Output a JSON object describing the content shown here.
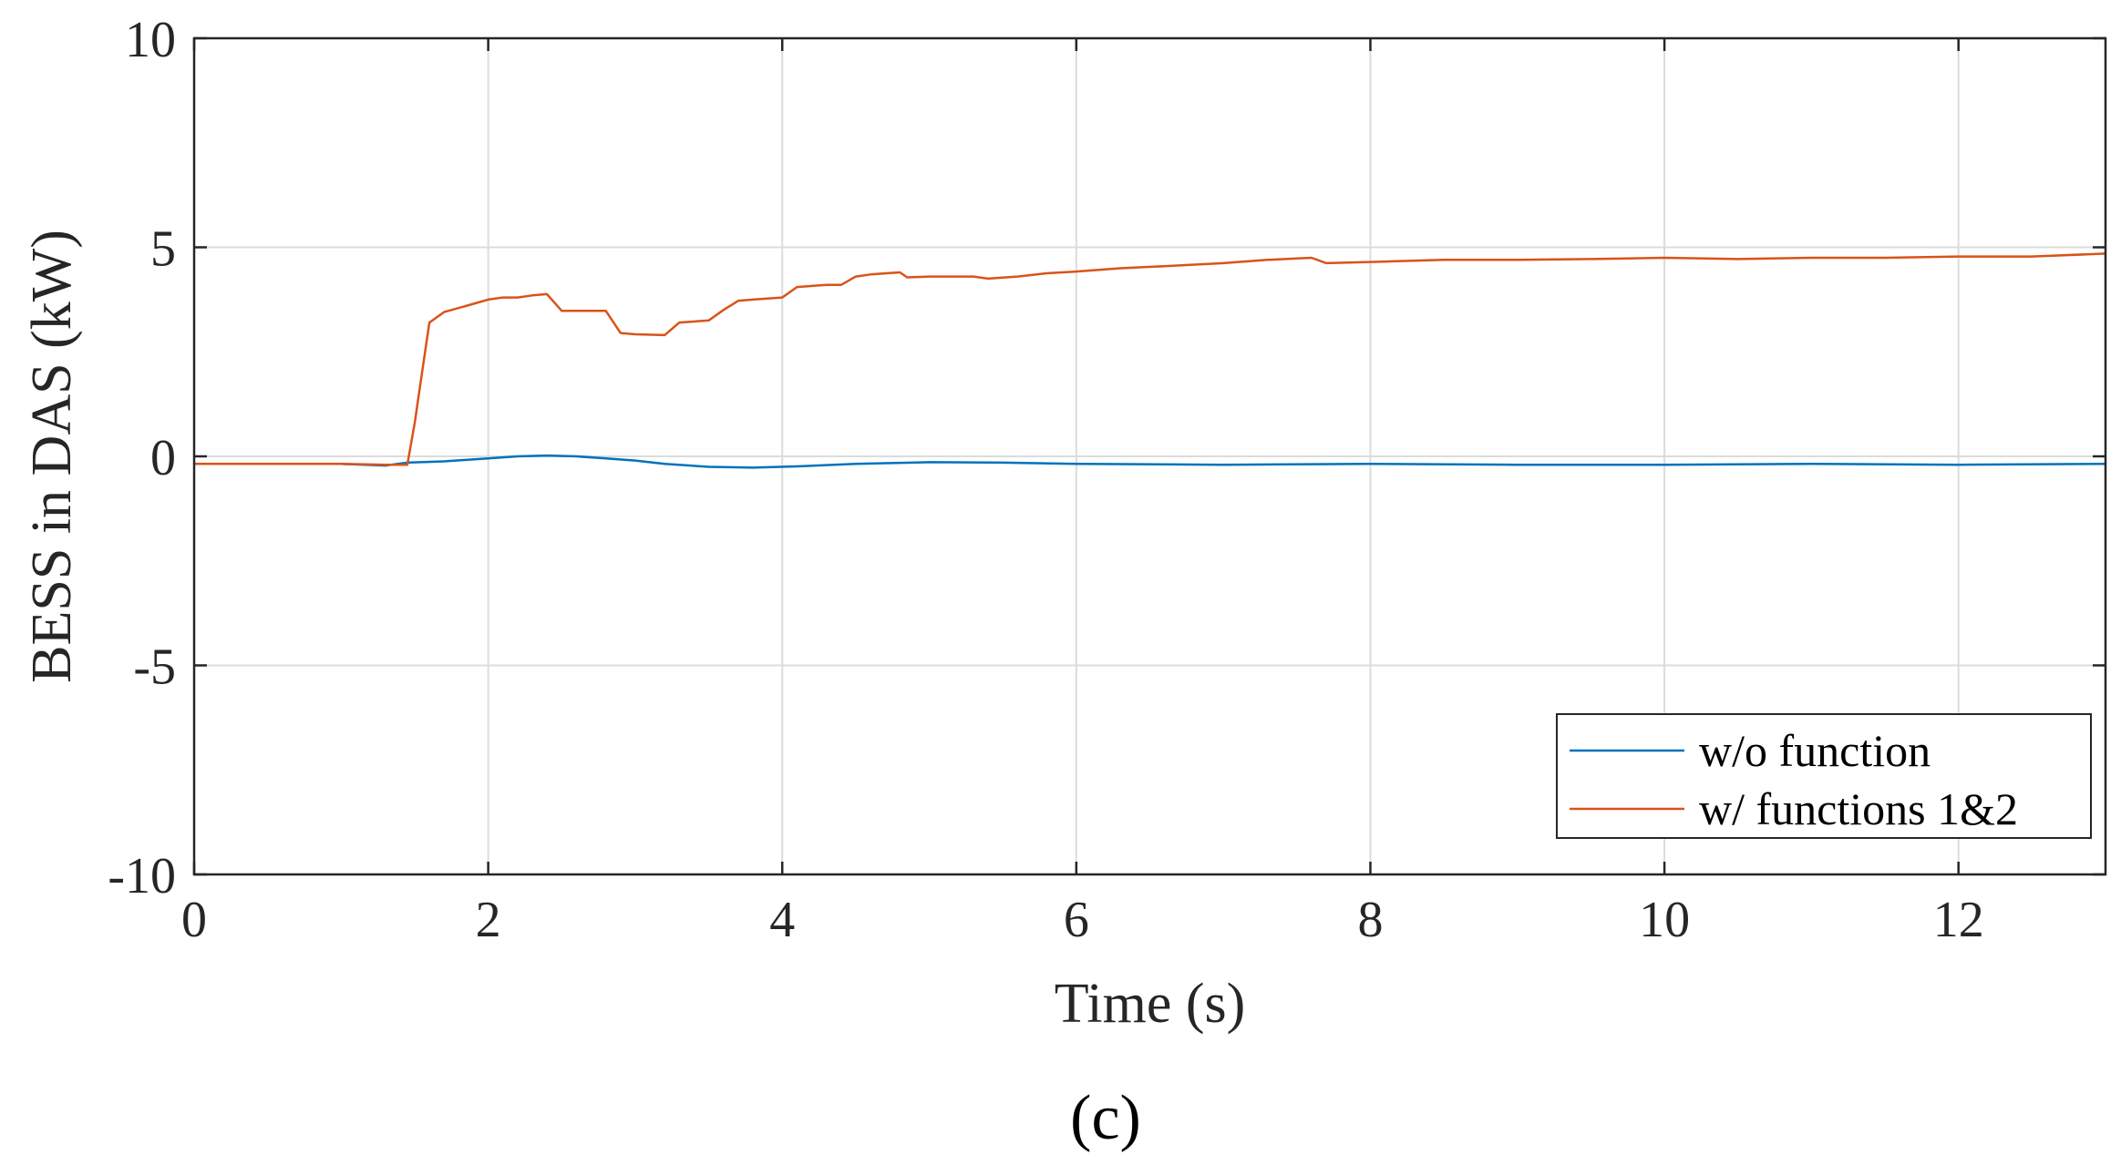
{
  "chart_data": {
    "type": "line",
    "xlabel": "Time (s)",
    "ylabel": "BESS in DAS (kW)",
    "xlim": [
      0,
      13
    ],
    "ylim": [
      -10,
      10
    ],
    "xticks": [
      0,
      2,
      4,
      6,
      8,
      10,
      12
    ],
    "yticks": [
      -10,
      -5,
      0,
      5,
      10
    ],
    "xtick_labels": [
      "0",
      "2",
      "4",
      "6",
      "8",
      "10",
      "12"
    ],
    "ytick_labels": [
      "-10",
      "-5",
      "0",
      "5",
      "10"
    ],
    "grid": true,
    "legend_position": "bottom-right",
    "series": [
      {
        "name": "w/o function",
        "color": "#0072BD",
        "x": [
          0,
          0.5,
          1.0,
          1.3,
          1.45,
          1.7,
          2.0,
          2.2,
          2.4,
          2.6,
          2.8,
          3.0,
          3.2,
          3.5,
          3.8,
          4.1,
          4.5,
          5.0,
          5.5,
          6.0,
          7.0,
          8.0,
          9.0,
          10.0,
          11.0,
          12.0,
          13.0
        ],
        "y": [
          -0.18,
          -0.18,
          -0.18,
          -0.22,
          -0.15,
          -0.12,
          -0.05,
          0.0,
          0.02,
          0.0,
          -0.05,
          -0.1,
          -0.18,
          -0.25,
          -0.27,
          -0.24,
          -0.18,
          -0.14,
          -0.15,
          -0.18,
          -0.2,
          -0.18,
          -0.2,
          -0.2,
          -0.18,
          -0.2,
          -0.18
        ]
      },
      {
        "name": "w/ functions 1&2",
        "color": "#D95319",
        "x": [
          0,
          0.5,
          1.0,
          1.3,
          1.45,
          1.5,
          1.55,
          1.6,
          1.7,
          1.8,
          1.9,
          2.0,
          2.1,
          2.2,
          2.3,
          2.4,
          2.5,
          2.6,
          2.8,
          2.9,
          3.0,
          3.2,
          3.3,
          3.5,
          3.6,
          3.7,
          3.8,
          4.0,
          4.1,
          4.3,
          4.4,
          4.5,
          4.6,
          4.8,
          4.85,
          5.0,
          5.3,
          5.4,
          5.6,
          5.8,
          6.0,
          6.3,
          6.6,
          7.0,
          7.3,
          7.6,
          7.7,
          8.0,
          8.5,
          9.0,
          9.5,
          10.0,
          10.5,
          11.0,
          11.5,
          12.0,
          12.5,
          13.0
        ],
        "y": [
          -0.18,
          -0.18,
          -0.18,
          -0.2,
          -0.2,
          0.8,
          2.0,
          3.2,
          3.45,
          3.55,
          3.65,
          3.75,
          3.8,
          3.8,
          3.85,
          3.88,
          3.48,
          3.48,
          3.48,
          2.95,
          2.92,
          2.9,
          3.2,
          3.25,
          3.5,
          3.72,
          3.75,
          3.8,
          4.05,
          4.1,
          4.1,
          4.3,
          4.35,
          4.4,
          4.28,
          4.3,
          4.3,
          4.25,
          4.3,
          4.38,
          4.42,
          4.5,
          4.55,
          4.62,
          4.7,
          4.75,
          4.62,
          4.65,
          4.7,
          4.7,
          4.72,
          4.75,
          4.72,
          4.75,
          4.75,
          4.78,
          4.78,
          4.85
        ]
      }
    ]
  },
  "caption": "(c)"
}
